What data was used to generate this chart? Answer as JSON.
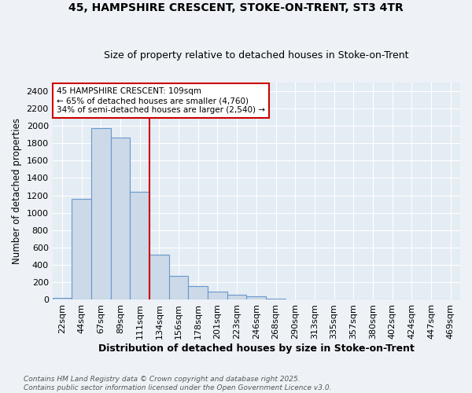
{
  "title_line1": "45, HAMPSHIRE CRESCENT, STOKE-ON-TRENT, ST3 4TR",
  "title_line2": "Size of property relative to detached houses in Stoke-on-Trent",
  "xlabel": "Distribution of detached houses by size in Stoke-on-Trent",
  "ylabel": "Number of detached properties",
  "bins": [
    "22sqm",
    "44sqm",
    "67sqm",
    "89sqm",
    "111sqm",
    "134sqm",
    "156sqm",
    "178sqm",
    "201sqm",
    "223sqm",
    "246sqm",
    "268sqm",
    "290sqm",
    "313sqm",
    "335sqm",
    "357sqm",
    "380sqm",
    "402sqm",
    "424sqm",
    "447sqm",
    "469sqm"
  ],
  "values": [
    25,
    1160,
    1970,
    1860,
    1240,
    520,
    275,
    155,
    90,
    55,
    40,
    15,
    5,
    5,
    2,
    2,
    2,
    2,
    2,
    2,
    2
  ],
  "bar_color": "#ccd9e8",
  "bar_edge_color": "#6699cc",
  "red_line_bin_index": 4,
  "annotation_text": "45 HAMPSHIRE CRESCENT: 109sqm\n← 65% of detached houses are smaller (4,760)\n34% of semi-detached houses are larger (2,540) →",
  "annotation_box_color": "white",
  "annotation_box_edge_color": "#cc0000",
  "ylim": [
    0,
    2500
  ],
  "yticks": [
    0,
    200,
    400,
    600,
    800,
    1000,
    1200,
    1400,
    1600,
    1800,
    2000,
    2200,
    2400
  ],
  "footnote": "Contains HM Land Registry data © Crown copyright and database right 2025.\nContains public sector information licensed under the Open Government Licence v3.0.",
  "background_color": "#eef2f7",
  "plot_bg_color": "#e4ecf4",
  "grid_color": "white"
}
